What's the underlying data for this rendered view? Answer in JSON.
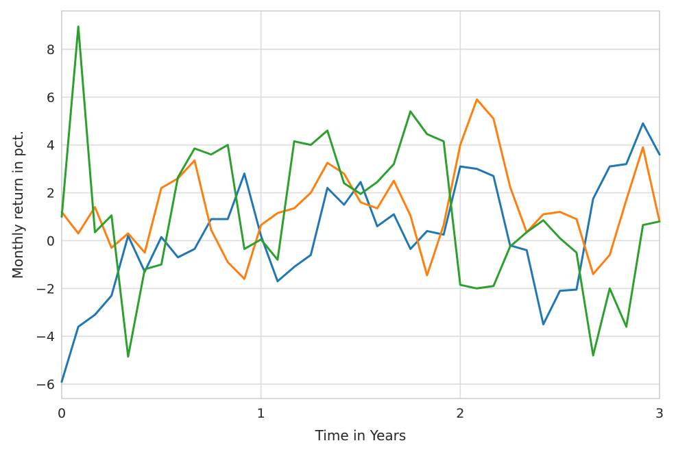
{
  "chart_data": {
    "type": "line",
    "title": "",
    "xlabel": "Time in Years",
    "ylabel": "Monthly return in pct.",
    "xlim": [
      0,
      3
    ],
    "ylim": [
      -6.6,
      9.6
    ],
    "xticks": [
      0,
      1,
      2,
      3
    ],
    "yticks": [
      -6,
      -4,
      -2,
      0,
      2,
      4,
      6,
      8
    ],
    "xtick_labels": [
      "0",
      "1",
      "2",
      "3"
    ],
    "ytick_labels": [
      "−6",
      "−4",
      "−2",
      "0",
      "2",
      "4",
      "6",
      "8"
    ],
    "grid": true,
    "x": [
      0,
      0.0833,
      0.1667,
      0.25,
      0.3333,
      0.4167,
      0.5,
      0.5833,
      0.6667,
      0.75,
      0.8333,
      0.9167,
      1,
      1.0833,
      1.1667,
      1.25,
      1.3333,
      1.4167,
      1.5,
      1.5833,
      1.6667,
      1.75,
      1.8333,
      1.9167,
      2,
      2.0833,
      2.1667,
      2.25,
      2.3333,
      2.4167,
      2.5,
      2.5833,
      2.6667,
      2.75,
      2.8333,
      2.9167,
      3
    ],
    "series": [
      {
        "color": "#1f77b4",
        "values": [
          -5.9,
          -3.6,
          -3.1,
          -2.3,
          0.2,
          -1.3,
          0.15,
          -0.7,
          -0.35,
          0.9,
          0.9,
          2.8,
          0.2,
          -1.7,
          -1.1,
          -0.6,
          2.2,
          1.5,
          2.45,
          0.6,
          1.1,
          -0.35,
          0.4,
          0.25,
          3.1,
          3.0,
          2.7,
          -0.2,
          -0.4,
          -3.5,
          -2.1,
          -2.05,
          1.75,
          3.1,
          3.2,
          4.9,
          3.6
        ]
      },
      {
        "color": "#ff7f0e",
        "values": [
          1.2,
          0.3,
          1.4,
          -0.3,
          0.3,
          -0.5,
          2.2,
          2.6,
          3.35,
          0.45,
          -0.9,
          -1.6,
          0.65,
          1.15,
          1.35,
          2.0,
          3.25,
          2.8,
          1.6,
          1.35,
          2.5,
          1.05,
          -1.45,
          0.65,
          4.0,
          5.9,
          5.1,
          2.25,
          0.35,
          1.1,
          1.2,
          0.9,
          -1.4,
          -0.6,
          1.7,
          3.9,
          0.8
        ]
      },
      {
        "color": "#2ca02c",
        "values": [
          1.0,
          8.95,
          0.35,
          1.05,
          -4.85,
          -1.2,
          -1.0,
          2.65,
          3.85,
          3.6,
          4.0,
          -0.35,
          0.05,
          -0.8,
          4.15,
          4.0,
          4.6,
          2.4,
          1.95,
          2.45,
          3.2,
          5.4,
          4.45,
          4.15,
          -1.85,
          -2.0,
          -1.9,
          -0.25,
          0.35,
          0.85,
          0.1,
          -0.5,
          -4.8,
          -2.0,
          -3.6,
          0.65,
          0.8
        ]
      }
    ]
  }
}
